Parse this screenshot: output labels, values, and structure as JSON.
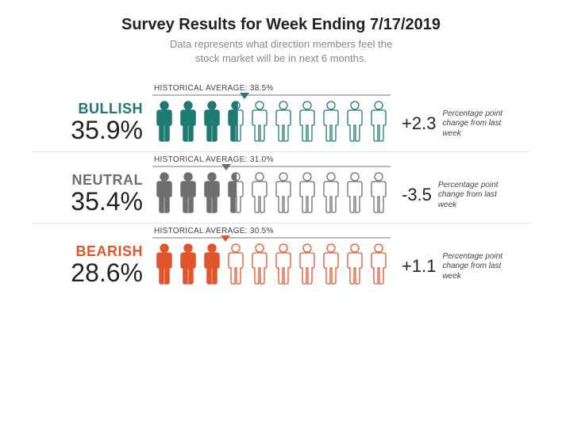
{
  "title": "Survey Results for Week Ending 7/17/2019",
  "subtitle_line1": "Data represents what direction members feel the",
  "subtitle_line2": "stock market will be in next 6 months.",
  "delta_description": "Percentage point change from last week",
  "figure_count": 10,
  "colors": {
    "bullish": "#1f7a72",
    "neutral": "#6e6e6e",
    "bearish": "#e0552c",
    "background": "#ffffff",
    "title_text": "#222222",
    "subtitle_text": "#888888",
    "divider": "#e5e5e5",
    "bar": "#bbbbbb"
  },
  "typography": {
    "title_fontsize": 20,
    "subtitle_fontsize": 13,
    "label_fontsize": 18,
    "pct_fontsize": 32,
    "delta_fontsize": 22,
    "hist_fontsize": 10,
    "desc_fontsize": 10
  },
  "rows": [
    {
      "key": "bullish",
      "label": "BULLISH",
      "value": 35.9,
      "value_str": "35.9%",
      "hist_avg": 38.5,
      "hist_label": "HISTORICAL AVERAGE: 38.5%",
      "delta": 2.3,
      "delta_str": "+2.3",
      "color": "#1f7a72"
    },
    {
      "key": "neutral",
      "label": "NEUTRAL",
      "value": 35.4,
      "value_str": "35.4%",
      "hist_avg": 31.0,
      "hist_label": "HISTORICAL AVERAGE: 31.0%",
      "delta": -3.5,
      "delta_str": "-3.5",
      "color": "#6e6e6e"
    },
    {
      "key": "bearish",
      "label": "BEARISH",
      "value": 28.6,
      "value_str": "28.6%",
      "hist_avg": 30.5,
      "hist_label": "HISTORICAL AVERAGE: 30.5%",
      "delta": 1.1,
      "delta_str": "+1.1",
      "color": "#e0552c"
    }
  ]
}
